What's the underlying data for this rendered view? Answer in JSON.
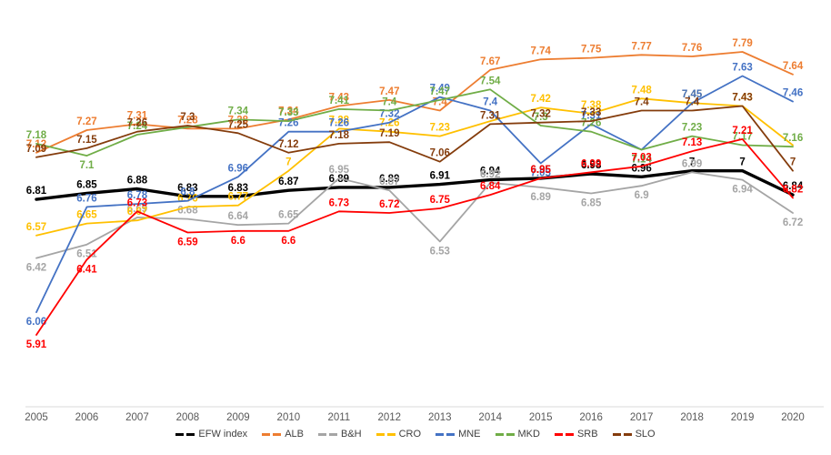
{
  "chart_data": {
    "type": "line",
    "title": "",
    "xlabel": "",
    "ylabel": "",
    "grid": "off",
    "legend_position": "bottom",
    "axis_line_color": "#D9D9D9",
    "year_label_color": "#595959",
    "y_implied_range": [
      5.85,
      7.9
    ],
    "categories": [
      "2005",
      "2006",
      "2007",
      "2008",
      "2009",
      "2010",
      "2011",
      "2012",
      "2013",
      "2014",
      "2015",
      "2016",
      "2017",
      "2018",
      "2019",
      "2020"
    ],
    "series": [
      {
        "name": "EFW index",
        "color": "#000000",
        "width": 3.4,
        "values": [
          6.81,
          6.85,
          6.88,
          6.83,
          6.83,
          6.87,
          6.89,
          6.89,
          6.91,
          6.94,
          6.95,
          6.98,
          6.96,
          7.0,
          7.0,
          6.84
        ],
        "labels": [
          "6.81",
          "6.85",
          "6.88",
          "6.83",
          "6.83",
          "6.87",
          "6.89",
          "6.89",
          "6.91",
          "6.94",
          "6.95",
          "6.98",
          "6.96",
          "7",
          "7",
          "6.84"
        ],
        "label_pos": [
          "a",
          "a",
          "a",
          "a",
          "a",
          "a",
          "a",
          "a",
          "a",
          "a",
          "a",
          "a",
          "a",
          "a",
          "a",
          "a"
        ]
      },
      {
        "name": "ALB",
        "color": "#ED7D31",
        "width": 1.8,
        "values": [
          7.12,
          7.27,
          7.31,
          7.28,
          7.28,
          7.34,
          7.43,
          7.47,
          7.4,
          7.67,
          7.74,
          7.75,
          7.77,
          7.76,
          7.79,
          7.64
        ],
        "labels": [
          "7.12",
          "7.27",
          "7.31",
          "7.28",
          "7.28",
          "7.34",
          "7.43",
          "7.47",
          "7.4",
          "7.67",
          "7.74",
          "7.75",
          "7.77",
          "7.76",
          "7.79",
          "7.64"
        ],
        "label_pos": [
          "a",
          "a",
          "a",
          "a",
          "a",
          "a",
          "a",
          "a",
          "a",
          "a",
          "a",
          "a",
          "a",
          "a",
          "a",
          "a"
        ]
      },
      {
        "name": "B&H",
        "color": "#A5A5A5",
        "width": 1.8,
        "values": [
          6.42,
          6.51,
          6.69,
          6.68,
          6.64,
          6.65,
          6.95,
          6.87,
          6.53,
          6.92,
          6.89,
          6.85,
          6.9,
          6.99,
          6.94,
          6.72
        ],
        "labels": [
          "6.42",
          "6.51",
          "6.69",
          "6.68",
          "6.64",
          "6.65",
          "6.95",
          "6.87",
          "6.53",
          "6.92",
          "6.89",
          "6.85",
          "6.9",
          "6.99",
          "6.94",
          "6.72"
        ],
        "label_pos": [
          "b",
          "b",
          "a",
          "a",
          "a",
          "a",
          "a",
          "a",
          "b",
          "a",
          "b",
          "b",
          "b",
          "a",
          "b",
          "b"
        ]
      },
      {
        "name": "CRO",
        "color": "#FFC000",
        "width": 1.8,
        "values": [
          6.57,
          6.65,
          6.67,
          6.76,
          6.77,
          7.0,
          7.28,
          7.26,
          7.23,
          7.33,
          7.42,
          7.38,
          7.48,
          7.45,
          7.43,
          7.17
        ],
        "labels": [
          "6.57",
          "6.65",
          "6.67",
          "6.76",
          "6.77",
          "7",
          "7.28",
          "7.26",
          "7.23",
          "",
          "7.42",
          "7.38",
          "7.48",
          "7.45",
          "7.43",
          ""
        ],
        "label_pos": [
          "a",
          "a",
          "a",
          "a",
          "a",
          "a",
          "a",
          "a",
          "a",
          "a",
          "a",
          "a",
          "a",
          "a",
          "a",
          "a"
        ]
      },
      {
        "name": "MNE",
        "color": "#4472C4",
        "width": 1.8,
        "values": [
          6.06,
          6.76,
          6.78,
          6.8,
          6.96,
          7.26,
          7.26,
          7.32,
          7.49,
          7.4,
          7.05,
          7.31,
          7.14,
          7.45,
          7.63,
          7.46
        ],
        "labels": [
          "6.06",
          "6.76",
          "6.78",
          "6.8",
          "6.96",
          "7.26",
          "7.26",
          "7.32",
          "7.49",
          "7.4",
          "7.05",
          "7.31",
          "7.14",
          "7.45",
          "7.63",
          "7.46"
        ],
        "label_pos": [
          "b",
          "a",
          "a",
          "a",
          "a",
          "a",
          "a",
          "a",
          "a",
          "a",
          "b",
          "a",
          "b",
          "a",
          "a",
          "a"
        ]
      },
      {
        "name": "MKD",
        "color": "#70AD47",
        "width": 1.8,
        "values": [
          7.18,
          7.1,
          7.24,
          7.29,
          7.34,
          7.33,
          7.41,
          7.4,
          7.47,
          7.54,
          7.3,
          7.26,
          7.14,
          7.23,
          7.17,
          7.16
        ],
        "labels": [
          "7.18",
          "7.1",
          "7.24",
          "",
          "7.34",
          "7.33",
          "7.41",
          "7.4",
          "7.47",
          "7.54",
          "7.3",
          "7.26",
          "7.14",
          "7.23",
          "7.17",
          "7.16"
        ],
        "label_pos": [
          "a",
          "b",
          "a",
          "a",
          "a",
          "a",
          "a",
          "a",
          "a",
          "a",
          "a",
          "a",
          "b",
          "a",
          "a",
          "a"
        ]
      },
      {
        "name": "SRB",
        "color": "#FF0000",
        "width": 1.8,
        "values": [
          5.91,
          6.41,
          6.73,
          6.59,
          6.6,
          6.6,
          6.73,
          6.72,
          6.75,
          6.84,
          6.95,
          6.99,
          7.03,
          7.13,
          7.21,
          6.82
        ],
        "labels": [
          "5.91",
          "6.41",
          "6.73",
          "6.59",
          "6.6",
          "6.6",
          "6.73",
          "6.72",
          "6.75",
          "6.84",
          "6.95",
          "6.99",
          "7.03",
          "7.13",
          "7.21",
          "6.82"
        ],
        "label_pos": [
          "b",
          "b",
          "a",
          "b",
          "b",
          "b",
          "a",
          "a",
          "a",
          "a",
          "a",
          "a",
          "a",
          "a",
          "a",
          "a"
        ]
      },
      {
        "name": "SLO",
        "color": "#843C0C",
        "width": 1.8,
        "values": [
          7.09,
          7.15,
          7.26,
          7.3,
          7.25,
          7.12,
          7.18,
          7.19,
          7.06,
          7.31,
          7.32,
          7.33,
          7.4,
          7.4,
          7.43,
          7.0
        ],
        "labels": [
          "7.09",
          "7.15",
          "7.26",
          "7.3",
          "7.25",
          "7.12",
          "7.18",
          "7.19",
          "7.06",
          "7.31",
          "7.32",
          "7.33",
          "7.4",
          "7.4",
          "7.43",
          "7"
        ],
        "label_pos": [
          "a",
          "a",
          "a",
          "a",
          "a",
          "a",
          "a",
          "a",
          "a",
          "a",
          "a",
          "a",
          "a",
          "a",
          "a",
          "a"
        ]
      }
    ],
    "legend": [
      "EFW index",
      "ALB",
      "B&H",
      "CRO",
      "MNE",
      "MKD",
      "SRB",
      "SLO"
    ]
  }
}
